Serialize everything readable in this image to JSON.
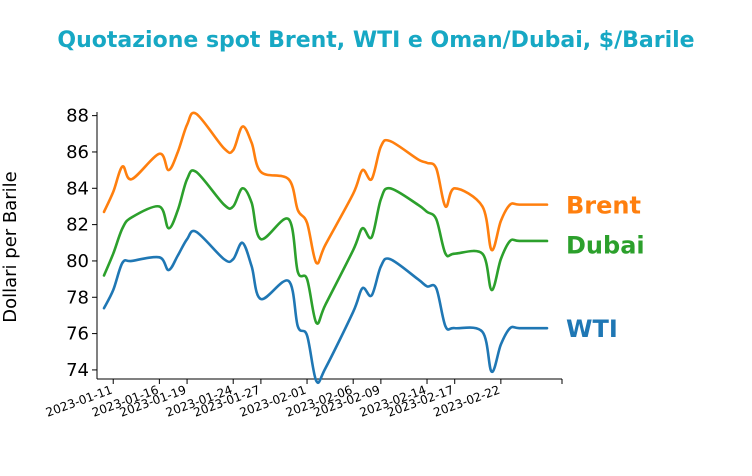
{
  "chart_data": {
    "type": "line",
    "title": "Quotazione spot Brent, WTI e Oman/Dubai, $/Barile",
    "xlabel": "",
    "ylabel": "Dollari per Barile",
    "ylim": [
      73.5,
      88.2
    ],
    "yticks": [
      74,
      76,
      78,
      80,
      82,
      84,
      86,
      88
    ],
    "x_tick_labels": [
      "2023-01-11",
      "2023-01-16",
      "2023-01-19",
      "2023-01-24",
      "2023-01-27",
      "2023-02-01",
      "2023-02-06",
      "2023-02-09",
      "2023-02-14",
      "2023-02-17",
      "2023-02-22"
    ],
    "grid": false,
    "legend": "labels at right end of lines",
    "x": [
      "2023-01-10",
      "2023-01-11",
      "2023-01-12",
      "2023-01-13",
      "2023-01-16",
      "2023-01-17",
      "2023-01-18",
      "2023-01-19",
      "2023-01-20",
      "2023-01-23",
      "2023-01-24",
      "2023-01-25",
      "2023-01-26",
      "2023-01-27",
      "2023-01-30",
      "2023-01-31",
      "2023-02-01",
      "2023-02-02",
      "2023-02-03",
      "2023-02-06",
      "2023-02-07",
      "2023-02-08",
      "2023-02-09",
      "2023-02-10",
      "2023-02-13",
      "2023-02-14",
      "2023-02-15",
      "2023-02-16",
      "2023-02-17",
      "2023-02-20",
      "2023-02-21",
      "2023-02-22",
      "2023-02-23",
      "2023-02-24",
      "2023-02-27"
    ],
    "series": [
      {
        "name": "Brent",
        "color": "#ff7f0e",
        "values": [
          82.7,
          83.8,
          85.2,
          84.5,
          85.9,
          85.0,
          86.0,
          87.5,
          88.1,
          86.2,
          86.1,
          87.4,
          86.5,
          84.9,
          84.5,
          82.8,
          82.1,
          79.9,
          80.9,
          83.7,
          85.0,
          84.5,
          86.3,
          86.6,
          85.6,
          85.4,
          85.1,
          83.0,
          84.0,
          83.0,
          80.6,
          82.2,
          83.1,
          83.1,
          83.1
        ]
      },
      {
        "name": "Dubai",
        "color": "#2ca02c",
        "values": [
          79.2,
          80.4,
          81.8,
          82.4,
          83.0,
          81.8,
          82.8,
          84.5,
          84.9,
          83.1,
          83.0,
          84.0,
          83.2,
          81.2,
          82.3,
          79.4,
          79.0,
          76.6,
          77.6,
          80.6,
          81.8,
          81.3,
          83.4,
          84.0,
          83.1,
          82.7,
          82.3,
          80.4,
          80.4,
          80.4,
          78.4,
          80.1,
          81.1,
          81.1,
          81.1
        ]
      },
      {
        "name": "WTI",
        "color": "#1f77b4",
        "values": [
          77.4,
          78.4,
          79.9,
          80.0,
          80.2,
          79.5,
          80.3,
          81.2,
          81.6,
          80.1,
          80.1,
          81.0,
          79.7,
          77.9,
          78.9,
          76.4,
          75.9,
          73.4,
          74.1,
          77.2,
          78.5,
          78.1,
          79.7,
          80.1,
          79.0,
          78.6,
          78.5,
          76.4,
          76.3,
          76.1,
          73.9,
          75.4,
          76.3,
          76.3,
          76.3
        ]
      }
    ]
  }
}
